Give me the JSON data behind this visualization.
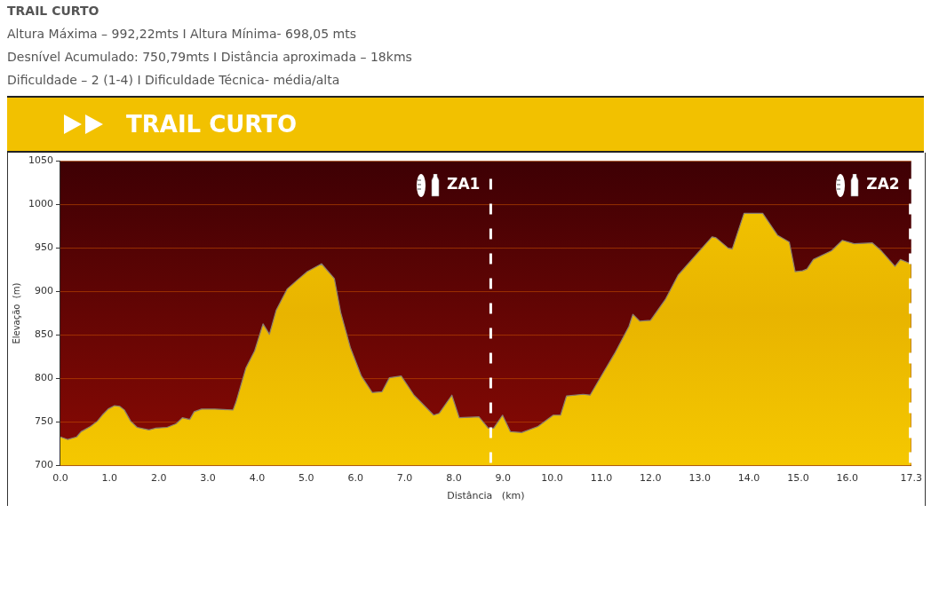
{
  "chart_data": {
    "type": "area",
    "title": "TRAIL CURTO",
    "subtitle": "TRAIL CURTO",
    "annotations": [
      "Altura Máxima – 992,22mts I Altura Mínima- 698,05 mts",
      "Desnível Acumulado: 750,79mts I Distância aproximada – 18kms",
      "Dificuldade – 2 (1-4) I Dificuldade Técnica- média/alta"
    ],
    "xlabel": "Distância   (km)",
    "ylabel": "Elevação  (m)",
    "x": [
      0,
      0.15,
      0.33,
      0.42,
      0.61,
      0.75,
      0.85,
      0.97,
      1.1,
      1.21,
      1.3,
      1.43,
      1.56,
      1.8,
      1.93,
      2.17,
      2.35,
      2.48,
      2.63,
      2.72,
      2.87,
      3.14,
      3.51,
      3.57,
      3.77,
      3.95,
      4.06,
      4.12,
      4.25,
      4.39,
      4.61,
      4.83,
      5.02,
      5.31,
      5.57,
      5.7,
      5.9,
      6.12,
      6.34,
      6.54,
      6.69,
      6.93,
      7.19,
      7.59,
      7.7,
      7.96,
      8.11,
      8.51,
      8.7,
      8.81,
      8.99,
      9.15,
      9.38,
      9.71,
      10.02,
      10.17,
      10.29,
      10.63,
      10.77,
      11.05,
      11.27,
      11.56,
      11.64,
      11.78,
      12.0,
      12.3,
      12.56,
      12.92,
      13.25,
      13.33,
      13.58,
      13.66,
      13.9,
      14.28,
      14.58,
      14.82,
      14.94,
      15.09,
      15.18,
      15.31,
      15.68,
      15.9,
      16.14,
      16.51,
      16.69,
      16.97,
      17.08,
      17.3
    ],
    "series": [
      {
        "color": "#f5c800",
        "values": [
          733,
          730,
          733,
          739,
          745,
          751,
          758,
          765,
          769,
          768,
          764,
          751,
          744,
          741,
          743,
          744,
          748,
          755,
          753,
          762,
          765,
          765,
          764,
          773,
          812,
          832,
          852,
          863,
          851,
          879,
          903,
          914,
          923,
          932,
          915,
          876,
          835,
          803,
          784,
          785,
          801,
          803,
          781,
          758,
          760,
          781,
          755,
          756,
          743,
          743,
          758,
          739,
          738,
          745,
          758,
          758,
          780,
          782,
          781,
          808,
          829,
          860,
          874,
          866,
          867,
          891,
          919,
          942,
          963,
          962,
          950,
          949,
          990,
          990,
          965,
          957,
          923,
          924,
          926,
          937,
          947,
          959,
          955,
          956,
          947,
          929,
          937,
          932
        ]
      }
    ],
    "xlim": [
      0,
      17.3
    ],
    "ylim": [
      700,
      1050
    ],
    "xticks": [
      {
        "value": 0,
        "label": "0.0"
      },
      {
        "value": 1,
        "label": "1.0"
      },
      {
        "value": 2,
        "label": "2.0"
      },
      {
        "value": 3,
        "label": "3.0"
      },
      {
        "value": 4,
        "label": "4.0"
      },
      {
        "value": 5,
        "label": "5.0"
      },
      {
        "value": 6,
        "label": "6.0"
      },
      {
        "value": 7,
        "label": "7.0"
      },
      {
        "value": 8,
        "label": "8.0"
      },
      {
        "value": 9,
        "label": "9.0"
      },
      {
        "value": 10,
        "label": "10.0"
      },
      {
        "value": 11,
        "label": "11.0"
      },
      {
        "value": 12,
        "label": "12.0"
      },
      {
        "value": 13,
        "label": "13.0"
      },
      {
        "value": 14,
        "label": "14.0"
      },
      {
        "value": 15,
        "label": "15.0"
      },
      {
        "value": 16,
        "label": "16.0"
      },
      {
        "value": 17.3,
        "label": "17.3"
      }
    ],
    "yticks": [
      700,
      750,
      800,
      850,
      900,
      950,
      1000,
      1050
    ],
    "grid": "y",
    "legend": false,
    "ref_lines": [
      {
        "axis": "x",
        "value": 8.75,
        "label": "ZA1",
        "color": "#ffffff",
        "line_style": "dashed"
      },
      {
        "axis": "x",
        "value": 17.28,
        "label": "ZA2",
        "color": "#ffffff",
        "line_style": "dashed"
      }
    ]
  }
}
